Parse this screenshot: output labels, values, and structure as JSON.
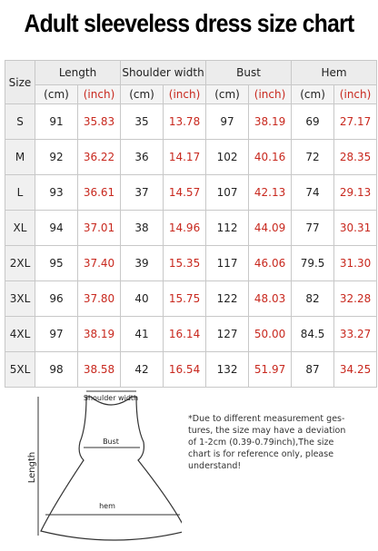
{
  "title": "Adult sleeveless dress size chart",
  "table": {
    "size_header": "Size",
    "groups": [
      "Length",
      "Shoulder width",
      "Bust",
      "Hem"
    ],
    "units": [
      "(cm)",
      "(inch)"
    ],
    "rows": [
      [
        "S",
        "91",
        "35.83",
        "35",
        "13.78",
        "97",
        "38.19",
        "69",
        "27.17"
      ],
      [
        "M",
        "92",
        "36.22",
        "36",
        "14.17",
        "102",
        "40.16",
        "72",
        "28.35"
      ],
      [
        "L",
        "93",
        "36.61",
        "37",
        "14.57",
        "107",
        "42.13",
        "74",
        "29.13"
      ],
      [
        "XL",
        "94",
        "37.01",
        "38",
        "14.96",
        "112",
        "44.09",
        "77",
        "30.31"
      ],
      [
        "2XL",
        "95",
        "37.40",
        "39",
        "15.35",
        "117",
        "46.06",
        "79.5",
        "31.30"
      ],
      [
        "3XL",
        "96",
        "37.80",
        "40",
        "15.75",
        "122",
        "48.03",
        "82",
        "32.28"
      ],
      [
        "4XL",
        "97",
        "38.19",
        "41",
        "16.14",
        "127",
        "50.00",
        "84.5",
        "33.27"
      ],
      [
        "5XL",
        "98",
        "38.58",
        "42",
        "16.54",
        "132",
        "51.97",
        "87",
        "34.25"
      ]
    ]
  },
  "diagram": {
    "shoulder": "Shoulder width",
    "bust": "Bust",
    "hem": "hem",
    "length": "Length"
  },
  "note": [
    "*Due to different measurement ges-",
    "tures, the size may have a deviation",
    "of 1-2cm (0.39-0.79inch),The size",
    "chart is for reference only, please",
    "understand!"
  ]
}
